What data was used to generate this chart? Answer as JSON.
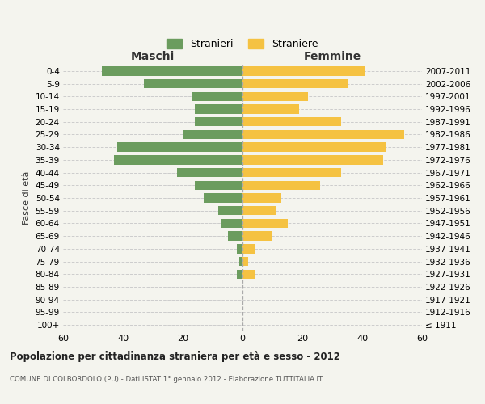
{
  "age_groups": [
    "100+",
    "95-99",
    "90-94",
    "85-89",
    "80-84",
    "75-79",
    "70-74",
    "65-69",
    "60-64",
    "55-59",
    "50-54",
    "45-49",
    "40-44",
    "35-39",
    "30-34",
    "25-29",
    "20-24",
    "15-19",
    "10-14",
    "5-9",
    "0-4"
  ],
  "birth_years": [
    "≤ 1911",
    "1912-1916",
    "1917-1921",
    "1922-1926",
    "1927-1931",
    "1932-1936",
    "1937-1941",
    "1942-1946",
    "1947-1951",
    "1952-1956",
    "1957-1961",
    "1962-1966",
    "1967-1971",
    "1972-1976",
    "1977-1981",
    "1982-1986",
    "1987-1991",
    "1992-1996",
    "1997-2001",
    "2002-2006",
    "2007-2011"
  ],
  "maschi": [
    0,
    0,
    0,
    0,
    2,
    1,
    2,
    5,
    7,
    8,
    13,
    16,
    22,
    43,
    42,
    20,
    16,
    16,
    17,
    33,
    47
  ],
  "femmine": [
    0,
    0,
    0,
    0,
    4,
    2,
    4,
    10,
    15,
    11,
    13,
    26,
    33,
    47,
    48,
    54,
    33,
    19,
    22,
    35,
    41
  ],
  "male_color": "#6b9c5e",
  "female_color": "#f5c242",
  "background_color": "#f4f4ee",
  "grid_color": "#cccccc",
  "xlim": 60,
  "title": "Popolazione per cittadinanza straniera per età e sesso - 2012",
  "subtitle": "COMUNE DI COLBORDOLO (PU) - Dati ISTAT 1° gennaio 2012 - Elaborazione TUTTITALIA.IT",
  "ylabel_left": "Fasce di età",
  "legend_male": "Stranieri",
  "legend_female": "Straniere",
  "maschi_label": "Maschi",
  "femmine_label": "Femmine"
}
